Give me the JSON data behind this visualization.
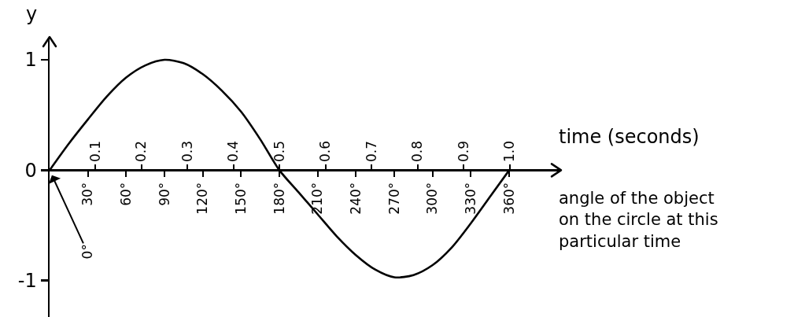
{
  "chart_data": {
    "type": "line",
    "ylabel": "y",
    "x2label": "time (seconds)",
    "xlabel": "angle of the object on the circle at this particular time",
    "x": [
      0,
      15,
      30,
      45,
      60,
      75,
      90,
      105,
      120,
      135,
      150,
      165,
      180,
      195,
      210,
      225,
      240,
      255,
      270,
      285,
      300,
      315,
      330,
      345,
      360
    ],
    "series": [
      {
        "color": "#000000",
        "values": [
          0,
          0.24,
          0.46,
          0.67,
          0.84,
          0.95,
          1.0,
          0.97,
          0.87,
          0.72,
          0.53,
          0.28,
          0,
          -0.2,
          -0.4,
          -0.6,
          -0.77,
          -0.9,
          -0.97,
          -0.95,
          -0.86,
          -0.7,
          -0.48,
          -0.24,
          0
        ]
      }
    ],
    "xlim": [
      0,
      400
    ],
    "xticks": [
      {
        "value": 30,
        "label": "30°"
      },
      {
        "value": 60,
        "label": "60°"
      },
      {
        "value": 90,
        "label": "90°"
      },
      {
        "value": 120,
        "label": "120°"
      },
      {
        "value": 150,
        "label": "150°"
      },
      {
        "value": 180,
        "label": "180°"
      },
      {
        "value": 210,
        "label": "210°"
      },
      {
        "value": 240,
        "label": "240°"
      },
      {
        "value": 270,
        "label": "270°"
      },
      {
        "value": 300,
        "label": "300°"
      },
      {
        "value": 330,
        "label": "330°"
      },
      {
        "value": 360,
        "label": "360°"
      }
    ],
    "x2lim": [
      0,
      1.11
    ],
    "x2ticks": [
      0.1,
      0.2,
      0.3,
      0.4,
      0.5,
      0.6,
      0.7,
      0.8,
      0.9,
      {
        "value": 1,
        "label": "1.0"
      }
    ],
    "ylim": [
      -1.33,
      1.2
    ],
    "yticks": [
      -1,
      0,
      1
    ],
    "line_style": "solid",
    "annotations": [
      {
        "text": "0°",
        "x": 0,
        "y": 0
      }
    ]
  }
}
